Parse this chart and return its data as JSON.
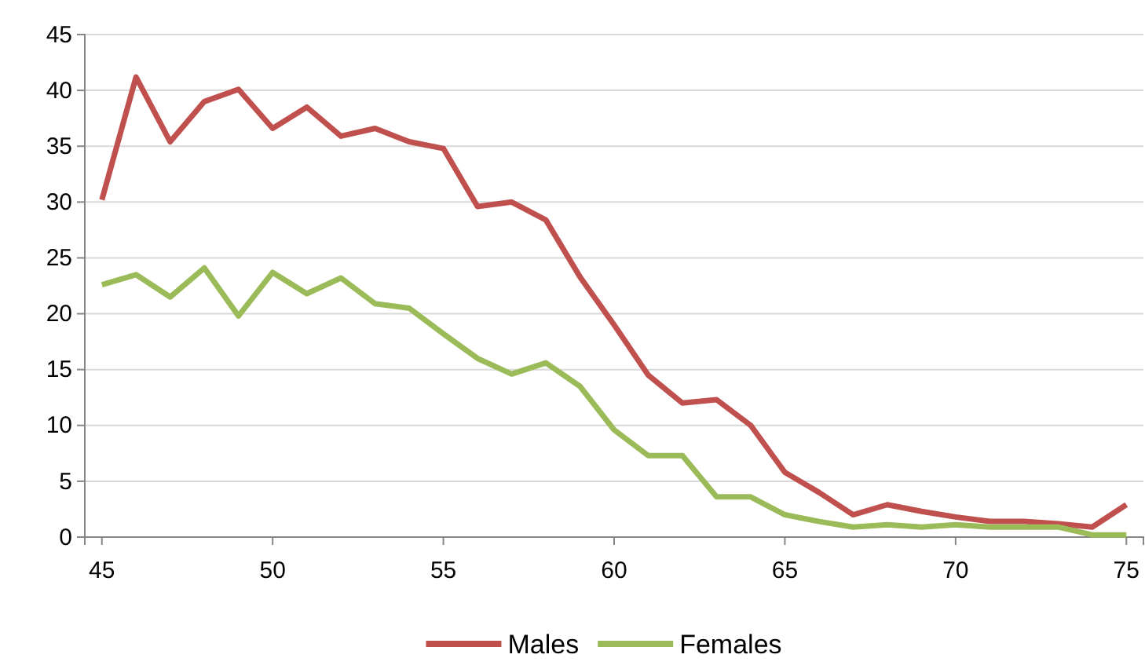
{
  "chart_data": {
    "type": "line",
    "x": [
      45,
      46,
      47,
      48,
      49,
      50,
      51,
      52,
      53,
      54,
      55,
      56,
      57,
      58,
      59,
      60,
      61,
      62,
      63,
      64,
      65,
      66,
      67,
      68,
      69,
      70,
      71,
      72,
      73,
      74,
      75
    ],
    "series": [
      {
        "name": "Males",
        "color": "#c0504d",
        "values": [
          30.2,
          41.2,
          35.4,
          39,
          40.1,
          36.6,
          38.5,
          35.9,
          36.6,
          35.4,
          34.8,
          29.6,
          30,
          28.4,
          23.3,
          19,
          14.5,
          12,
          12.3,
          10,
          5.8,
          4,
          2,
          2.9,
          2.3,
          1.8,
          1.4,
          1.4,
          1.2,
          0.9,
          2.9
        ]
      },
      {
        "name": "Females",
        "color": "#9bbb59",
        "values": [
          22.6,
          23.5,
          21.5,
          24.1,
          19.8,
          23.7,
          21.8,
          23.2,
          20.9,
          20.5,
          18.2,
          16,
          14.6,
          15.6,
          13.5,
          9.6,
          7.3,
          7.3,
          3.6,
          3.6,
          2,
          1.4,
          0.9,
          1.1,
          0.9,
          1.1,
          0.9,
          0.9,
          0.9,
          0.2,
          0.2
        ]
      }
    ],
    "xlim": [
      44.5,
      75.5
    ],
    "xticks": [
      45,
      50,
      55,
      60,
      65,
      70,
      75
    ],
    "ylim": [
      0,
      45
    ],
    "yticks": [
      0,
      5,
      10,
      15,
      20,
      25,
      30,
      35,
      40,
      45
    ],
    "grid": "y",
    "legend": "bottom",
    "marker": "none",
    "line_style": "solid"
  }
}
